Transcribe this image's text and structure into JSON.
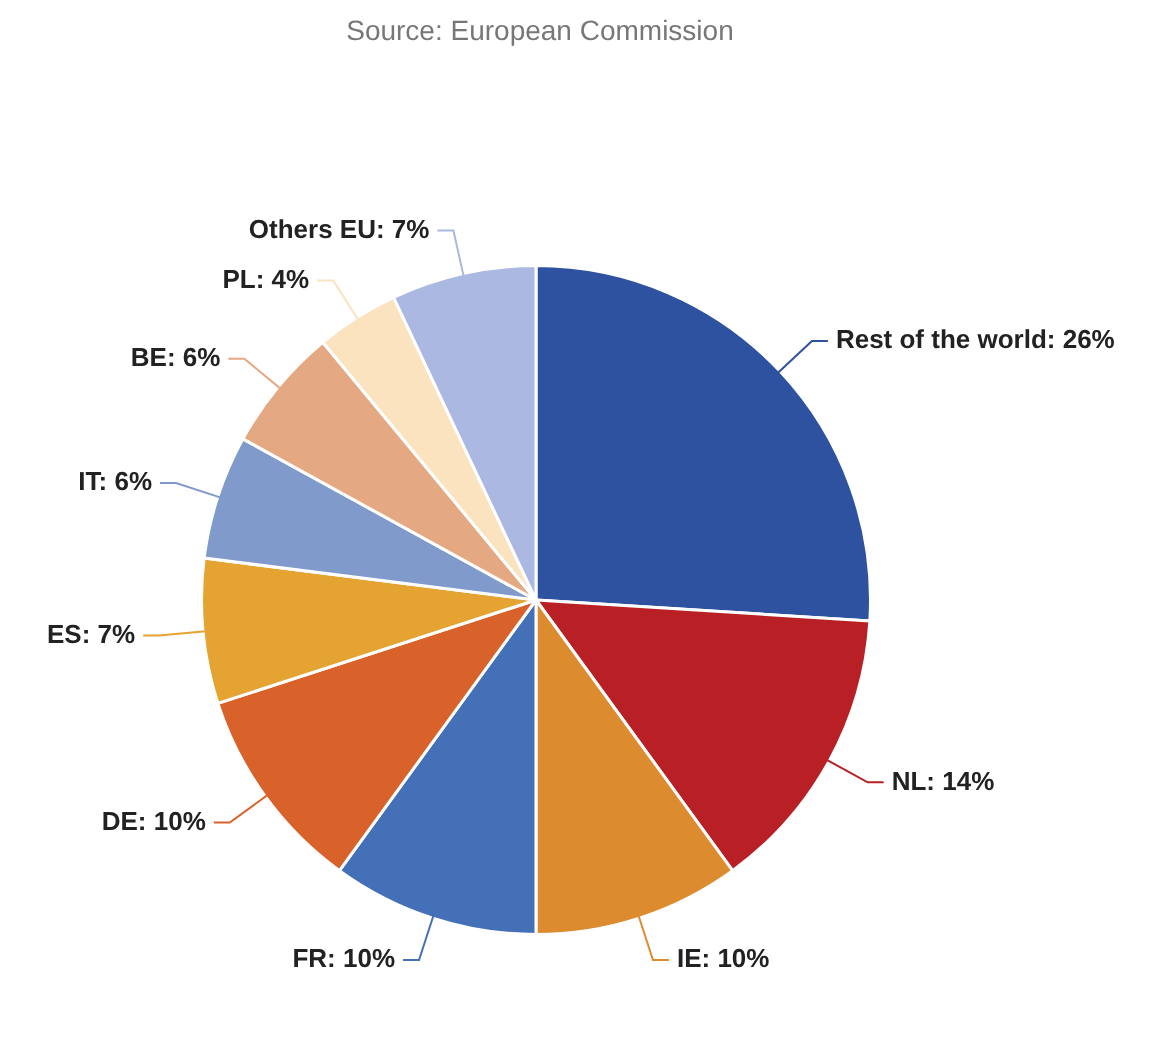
{
  "chart_data": {
    "type": "pie",
    "annotations": [
      "Source: European Commission"
    ],
    "categories": [
      "Rest of the world",
      "NL",
      "IE",
      "FR",
      "DE",
      "ES",
      "IT",
      "BE",
      "PL",
      "Others EU"
    ],
    "values": [
      26,
      14,
      10,
      10,
      10,
      7,
      6,
      6,
      4,
      7
    ],
    "value_labels": [
      "26%",
      "14%",
      "10%",
      "10%",
      "10%",
      "7%",
      "6%",
      "6%",
      "4%",
      "7%"
    ],
    "colors": [
      "#2e52a0",
      "#b82025",
      "#dc8b2e",
      "#4470b8",
      "#d9622b",
      "#e5a332",
      "#7f9acb",
      "#e4a982",
      "#fbe3c0",
      "#aab8e2"
    ],
    "legend": false
  }
}
